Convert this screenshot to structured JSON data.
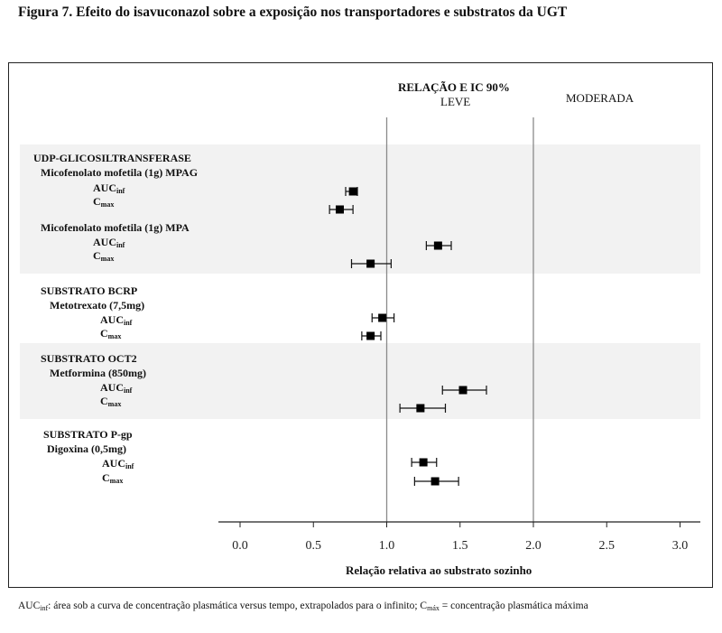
{
  "figure_title": "Figura 7.   Efeito do isavuconazol sobre a exposição nos transportadores e substratos da UGT",
  "header": {
    "ratio_title": "RELAÇÃO E IC 90%",
    "mild": "LEVE",
    "moderate": "MODERADA"
  },
  "groups": [
    {
      "title": "UDP-GLICOSILTRANSFERASE",
      "drugs": [
        "Micofenolato mofetila (1g) MPAG",
        "Micofenolato mofetila (1g) MPA"
      ]
    },
    {
      "title": "SUBSTRATO BCRP",
      "drugs": [
        "Metotrexato (7,5mg)"
      ]
    },
    {
      "title": "SUBSTRATO OCT2",
      "drugs": [
        "Metformina (850mg)"
      ]
    },
    {
      "title": "SUBSTRATO P-gp",
      "drugs": [
        "Digoxina (0,5mg)"
      ]
    }
  ],
  "metric_labels": {
    "auc_main": "AUC",
    "auc_sub": "inf",
    "cmax_main": "C",
    "cmax_sub": "max"
  },
  "chart_data": {
    "type": "forest",
    "xlabel": "Relação relativa ao substrato sozinho",
    "xlim": [
      -0.15,
      3.15
    ],
    "xticks": [
      0.0,
      0.5,
      1.0,
      1.5,
      2.0,
      2.5,
      3.0
    ],
    "xtick_labels": [
      "0.0",
      "0.5",
      "1.0",
      "1.5",
      "2.0",
      "2.5",
      "3.0"
    ],
    "reference_lines": [
      1.0,
      2.0
    ],
    "points": [
      {
        "drug": "Micofenolato mofetila (1g) MPAG",
        "metric": "AUCinf",
        "value": 0.77,
        "ci": [
          0.72,
          0.8
        ]
      },
      {
        "drug": "Micofenolato mofetila (1g) MPAG",
        "metric": "Cmax",
        "value": 0.68,
        "ci": [
          0.61,
          0.77
        ]
      },
      {
        "drug": "Micofenolato mofetila (1g) MPA",
        "metric": "AUCinf",
        "value": 1.35,
        "ci": [
          1.27,
          1.44
        ]
      },
      {
        "drug": "Micofenolato mofetila (1g) MPA",
        "metric": "Cmax",
        "value": 0.89,
        "ci": [
          0.76,
          1.03
        ]
      },
      {
        "drug": "Metotrexato (7,5mg)",
        "metric": "AUCinf",
        "value": 0.97,
        "ci": [
          0.9,
          1.05
        ]
      },
      {
        "drug": "Metotrexato (7,5mg)",
        "metric": "Cmax",
        "value": 0.89,
        "ci": [
          0.83,
          0.96
        ]
      },
      {
        "drug": "Metformina (850mg)",
        "metric": "AUCinf",
        "value": 1.52,
        "ci": [
          1.38,
          1.68
        ]
      },
      {
        "drug": "Metformina (850mg)",
        "metric": "Cmax",
        "value": 1.23,
        "ci": [
          1.09,
          1.4
        ]
      },
      {
        "drug": "Digoxina (0,5mg)",
        "metric": "AUCinf",
        "value": 1.25,
        "ci": [
          1.17,
          1.34
        ]
      },
      {
        "drug": "Digoxina (0,5mg)",
        "metric": "Cmax",
        "value": 1.33,
        "ci": [
          1.19,
          1.49
        ]
      }
    ]
  },
  "footnote": {
    "auc_main": "AUC",
    "auc_sub": "inf",
    "auc_text": ": área sob a curva de concentração plasmática versus tempo, extrapolados para o infinito; ",
    "cmax_main": "C",
    "cmax_sub": "máx",
    "cmax_text": " = concentração plasmática máxima"
  }
}
